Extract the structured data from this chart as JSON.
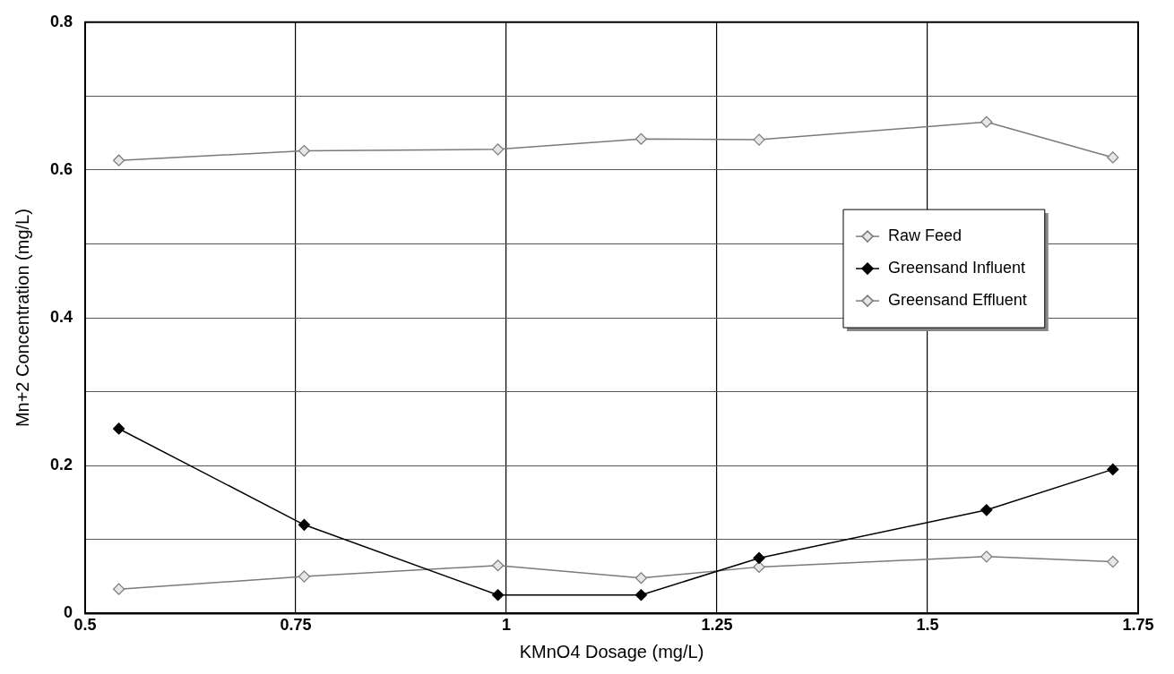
{
  "chart_data": {
    "type": "line",
    "xlabel": "KMnO4 Dosage (mg/L)",
    "ylabel": "Mn+2 Concentration (mg/L)",
    "x": [
      0.54,
      0.76,
      0.99,
      1.16,
      1.3,
      1.57,
      1.72
    ],
    "series": [
      {
        "name": "Raw Feed",
        "color": "#7a7a7a",
        "values": [
          0.613,
          0.626,
          0.628,
          0.642,
          0.641,
          0.665,
          0.617
        ]
      },
      {
        "name": "Greensand Influent",
        "color": "#000000",
        "values": [
          0.25,
          0.12,
          0.025,
          0.025,
          0.075,
          0.14,
          0.195
        ]
      },
      {
        "name": "Greensand Effluent",
        "color": "#7a7a7a",
        "values": [
          0.033,
          0.05,
          0.065,
          0.048,
          0.063,
          0.077,
          0.07
        ]
      }
    ],
    "xlim": [
      0.5,
      1.75
    ],
    "xticks": [
      0.5,
      0.75,
      1,
      1.25,
      1.5,
      1.75
    ],
    "ylim": [
      0,
      0.8
    ],
    "yticks": [
      0,
      {
        "value": 0.1,
        "label": null
      },
      0.2,
      {
        "value": 0.3,
        "label": null
      },
      0.4,
      {
        "value": 0.5,
        "label": null
      },
      0.6,
      {
        "value": 0.7,
        "label": null
      },
      0.8
    ],
    "grid": true,
    "legend": "right",
    "marker": "diamond",
    "line_style": "solid"
  }
}
